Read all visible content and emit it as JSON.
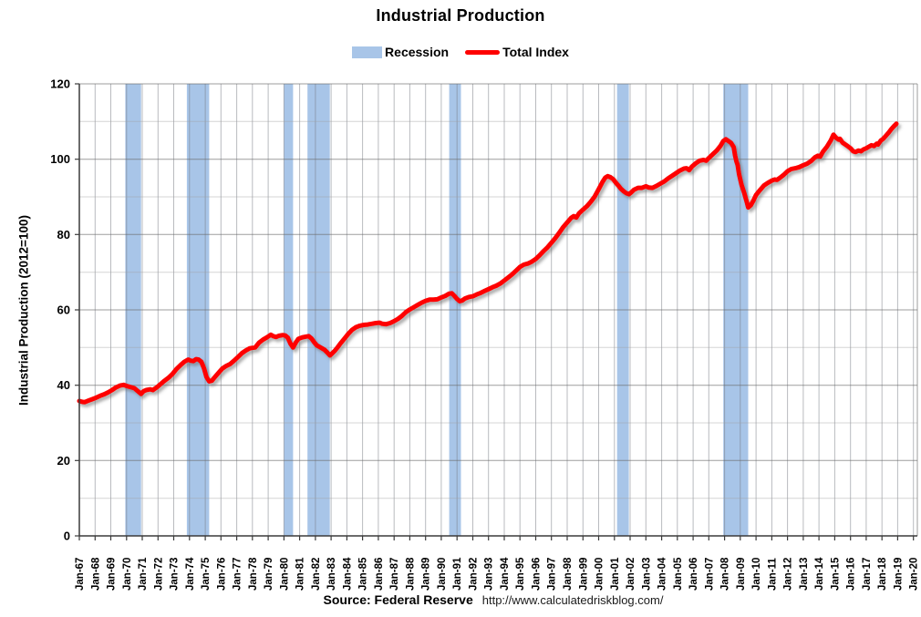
{
  "title": "Industrial Production",
  "legend": {
    "recession_label": "Recession",
    "total_index_label": "Total Index"
  },
  "y_axis": {
    "title": "Industrial Production (2012=100)",
    "ticks": [
      0,
      20,
      40,
      60,
      80,
      100,
      120
    ]
  },
  "x_axis": {
    "tick_labels": [
      "Jan-67",
      "Jan-68",
      "Jan-69",
      "Jan-70",
      "Jan-71",
      "Jan-72",
      "Jan-73",
      "Jan-74",
      "Jan-75",
      "Jan-76",
      "Jan-77",
      "Jan-78",
      "Jan-79",
      "Jan-80",
      "Jan-81",
      "Jan-82",
      "Jan-83",
      "Jan-84",
      "Jan-85",
      "Jan-86",
      "Jan-87",
      "Jan-88",
      "Jan-89",
      "Jan-90",
      "Jan-91",
      "Jan-92",
      "Jan-93",
      "Jan-94",
      "Jan-95",
      "Jan-96",
      "Jan-97",
      "Jan-98",
      "Jan-99",
      "Jan-00",
      "Jan-01",
      "Jan-02",
      "Jan-03",
      "Jan-04",
      "Jan-05",
      "Jan-06",
      "Jan-07",
      "Jan-08",
      "Jan-09",
      "Jan-10",
      "Jan-11",
      "Jan-12",
      "Jan-13",
      "Jan-14",
      "Jan-15",
      "Jan-16",
      "Jan-17",
      "Jan-18",
      "Jan-19",
      "Jan-20"
    ]
  },
  "source": {
    "label": "Source: Federal Reserve",
    "url": "http://www.calculatedriskblog.com/"
  },
  "colors": {
    "line": "#fe0000",
    "line_shadow": "#6a6a6a",
    "recession_band": "#a8c5e8",
    "grid_vertical": "rgba(115,120,128,0.50)",
    "grid_minor": "rgba(160,160,160,0.45)",
    "grid_major": "rgba(105,105,105,0.65)",
    "axis": "#3a3a3a",
    "text": "#000000"
  },
  "chart_data": {
    "type": "line",
    "title": "Industrial Production",
    "xlabel": "",
    "ylabel": "Industrial Production (2012=100)",
    "ylim": [
      0,
      120
    ],
    "xlim_years": [
      1967.0,
      2020.25
    ],
    "grid": "on",
    "legend_position": "top-center",
    "legend": [
      "Recession",
      "Total Index"
    ],
    "recessions": [
      [
        1969.92,
        1970.92
      ],
      [
        1973.83,
        1975.25
      ],
      [
        1980.0,
        1980.58
      ],
      [
        1981.5,
        1982.92
      ],
      [
        1990.5,
        1991.25
      ],
      [
        2001.17,
        2001.92
      ],
      [
        2007.92,
        2009.5
      ]
    ],
    "series": [
      {
        "name": "Total Index",
        "color": "#fe0000",
        "points": [
          [
            1967.0,
            35.8
          ],
          [
            1967.17,
            35.6
          ],
          [
            1967.33,
            35.5
          ],
          [
            1967.58,
            35.9
          ],
          [
            1967.83,
            36.3
          ],
          [
            1968.08,
            36.7
          ],
          [
            1968.33,
            37.2
          ],
          [
            1968.58,
            37.6
          ],
          [
            1968.83,
            38.1
          ],
          [
            1969.08,
            38.7
          ],
          [
            1969.33,
            39.4
          ],
          [
            1969.58,
            39.9
          ],
          [
            1969.83,
            40.1
          ],
          [
            1970.0,
            39.8
          ],
          [
            1970.17,
            39.6
          ],
          [
            1970.33,
            39.4
          ],
          [
            1970.5,
            39.2
          ],
          [
            1970.67,
            38.6
          ],
          [
            1970.92,
            37.7
          ],
          [
            1971.08,
            38.4
          ],
          [
            1971.25,
            38.7
          ],
          [
            1971.5,
            38.9
          ],
          [
            1971.67,
            38.7
          ],
          [
            1971.92,
            39.4
          ],
          [
            1972.17,
            40.3
          ],
          [
            1972.42,
            41.2
          ],
          [
            1972.67,
            42.0
          ],
          [
            1972.92,
            43.0
          ],
          [
            1973.17,
            44.3
          ],
          [
            1973.42,
            45.3
          ],
          [
            1973.67,
            46.2
          ],
          [
            1973.92,
            46.8
          ],
          [
            1974.08,
            46.5
          ],
          [
            1974.25,
            46.4
          ],
          [
            1974.42,
            46.9
          ],
          [
            1974.58,
            46.8
          ],
          [
            1974.75,
            46.2
          ],
          [
            1974.92,
            44.5
          ],
          [
            1975.08,
            42.2
          ],
          [
            1975.25,
            41.0
          ],
          [
            1975.42,
            41.2
          ],
          [
            1975.58,
            42.0
          ],
          [
            1975.83,
            43.2
          ],
          [
            1976.08,
            44.4
          ],
          [
            1976.33,
            45.1
          ],
          [
            1976.58,
            45.6
          ],
          [
            1976.83,
            46.5
          ],
          [
            1977.08,
            47.5
          ],
          [
            1977.33,
            48.5
          ],
          [
            1977.58,
            49.2
          ],
          [
            1977.83,
            49.8
          ],
          [
            1978.0,
            49.9
          ],
          [
            1978.17,
            50.0
          ],
          [
            1978.42,
            51.3
          ],
          [
            1978.67,
            52.1
          ],
          [
            1978.92,
            52.7
          ],
          [
            1979.17,
            53.4
          ],
          [
            1979.33,
            53.0
          ],
          [
            1979.5,
            52.8
          ],
          [
            1979.67,
            53.1
          ],
          [
            1979.92,
            53.3
          ],
          [
            1980.08,
            53.2
          ],
          [
            1980.25,
            52.6
          ],
          [
            1980.42,
            51.0
          ],
          [
            1980.58,
            50.0
          ],
          [
            1980.75,
            51.3
          ],
          [
            1980.92,
            52.3
          ],
          [
            1981.17,
            52.7
          ],
          [
            1981.42,
            52.9
          ],
          [
            1981.58,
            53.0
          ],
          [
            1981.75,
            52.4
          ],
          [
            1981.92,
            51.4
          ],
          [
            1982.08,
            50.6
          ],
          [
            1982.25,
            50.2
          ],
          [
            1982.42,
            49.8
          ],
          [
            1982.58,
            49.4
          ],
          [
            1982.75,
            48.7
          ],
          [
            1982.92,
            47.9
          ],
          [
            1983.08,
            48.5
          ],
          [
            1983.25,
            49.2
          ],
          [
            1983.42,
            50.1
          ],
          [
            1983.58,
            51.0
          ],
          [
            1983.83,
            52.3
          ],
          [
            1984.08,
            53.6
          ],
          [
            1984.33,
            54.7
          ],
          [
            1984.58,
            55.4
          ],
          [
            1984.83,
            55.8
          ],
          [
            1985.08,
            56.0
          ],
          [
            1985.33,
            56.1
          ],
          [
            1985.58,
            56.3
          ],
          [
            1985.83,
            56.5
          ],
          [
            1986.08,
            56.6
          ],
          [
            1986.25,
            56.3
          ],
          [
            1986.5,
            56.2
          ],
          [
            1986.75,
            56.5
          ],
          [
            1987.0,
            57.0
          ],
          [
            1987.25,
            57.6
          ],
          [
            1987.5,
            58.4
          ],
          [
            1987.75,
            59.4
          ],
          [
            1988.0,
            60.1
          ],
          [
            1988.25,
            60.7
          ],
          [
            1988.5,
            61.3
          ],
          [
            1988.75,
            61.9
          ],
          [
            1989.0,
            62.4
          ],
          [
            1989.25,
            62.7
          ],
          [
            1989.5,
            62.7
          ],
          [
            1989.75,
            62.8
          ],
          [
            1990.0,
            63.3
          ],
          [
            1990.25,
            63.7
          ],
          [
            1990.5,
            64.3
          ],
          [
            1990.67,
            64.4
          ],
          [
            1990.83,
            63.7
          ],
          [
            1991.0,
            62.9
          ],
          [
            1991.17,
            62.3
          ],
          [
            1991.33,
            62.5
          ],
          [
            1991.5,
            63.0
          ],
          [
            1991.75,
            63.4
          ],
          [
            1992.0,
            63.6
          ],
          [
            1992.25,
            64.1
          ],
          [
            1992.5,
            64.5
          ],
          [
            1992.75,
            65.0
          ],
          [
            1993.0,
            65.5
          ],
          [
            1993.25,
            66.0
          ],
          [
            1993.5,
            66.4
          ],
          [
            1993.75,
            67.0
          ],
          [
            1994.0,
            67.8
          ],
          [
            1994.25,
            68.6
          ],
          [
            1994.5,
            69.4
          ],
          [
            1994.75,
            70.4
          ],
          [
            1995.0,
            71.4
          ],
          [
            1995.25,
            72.0
          ],
          [
            1995.5,
            72.3
          ],
          [
            1995.75,
            72.8
          ],
          [
            1996.0,
            73.5
          ],
          [
            1996.25,
            74.5
          ],
          [
            1996.5,
            75.6
          ],
          [
            1996.75,
            76.6
          ],
          [
            1997.0,
            77.8
          ],
          [
            1997.25,
            79.1
          ],
          [
            1997.5,
            80.5
          ],
          [
            1997.75,
            82.0
          ],
          [
            1998.0,
            83.2
          ],
          [
            1998.25,
            84.4
          ],
          [
            1998.42,
            84.9
          ],
          [
            1998.58,
            84.5
          ],
          [
            1998.75,
            85.6
          ],
          [
            1999.0,
            86.6
          ],
          [
            1999.25,
            87.5
          ],
          [
            1999.5,
            88.7
          ],
          [
            1999.75,
            90.1
          ],
          [
            2000.0,
            92.0
          ],
          [
            2000.25,
            94.0
          ],
          [
            2000.42,
            95.1
          ],
          [
            2000.58,
            95.5
          ],
          [
            2000.75,
            95.2
          ],
          [
            2000.92,
            94.7
          ],
          [
            2001.08,
            93.8
          ],
          [
            2001.25,
            93.0
          ],
          [
            2001.42,
            92.1
          ],
          [
            2001.58,
            91.5
          ],
          [
            2001.75,
            91.0
          ],
          [
            2001.92,
            90.7
          ],
          [
            2002.08,
            91.2
          ],
          [
            2002.25,
            91.9
          ],
          [
            2002.5,
            92.4
          ],
          [
            2002.75,
            92.4
          ],
          [
            2003.0,
            92.8
          ],
          [
            2003.17,
            92.5
          ],
          [
            2003.42,
            92.4
          ],
          [
            2003.67,
            92.9
          ],
          [
            2003.92,
            93.5
          ],
          [
            2004.17,
            94.1
          ],
          [
            2004.42,
            94.9
          ],
          [
            2004.67,
            95.6
          ],
          [
            2004.92,
            96.3
          ],
          [
            2005.17,
            97.0
          ],
          [
            2005.42,
            97.5
          ],
          [
            2005.58,
            97.6
          ],
          [
            2005.75,
            97.1
          ],
          [
            2005.92,
            98.0
          ],
          [
            2006.17,
            98.9
          ],
          [
            2006.42,
            99.6
          ],
          [
            2006.67,
            99.8
          ],
          [
            2006.83,
            99.6
          ],
          [
            2007.0,
            100.3
          ],
          [
            2007.25,
            101.3
          ],
          [
            2007.5,
            102.3
          ],
          [
            2007.75,
            103.6
          ],
          [
            2007.92,
            104.8
          ],
          [
            2008.08,
            105.3
          ],
          [
            2008.25,
            104.8
          ],
          [
            2008.42,
            104.3
          ],
          [
            2008.58,
            103.2
          ],
          [
            2008.67,
            101.0
          ],
          [
            2008.75,
            99.5
          ],
          [
            2008.83,
            98.5
          ],
          [
            2008.92,
            96.0
          ],
          [
            2009.08,
            93.2
          ],
          [
            2009.25,
            91.0
          ],
          [
            2009.42,
            88.5
          ],
          [
            2009.5,
            87.2
          ],
          [
            2009.67,
            87.8
          ],
          [
            2009.83,
            89.0
          ],
          [
            2010.0,
            90.5
          ],
          [
            2010.25,
            91.8
          ],
          [
            2010.5,
            93.0
          ],
          [
            2010.75,
            93.7
          ],
          [
            2011.0,
            94.3
          ],
          [
            2011.17,
            94.6
          ],
          [
            2011.33,
            94.5
          ],
          [
            2011.5,
            95.0
          ],
          [
            2011.75,
            95.8
          ],
          [
            2012.0,
            96.8
          ],
          [
            2012.25,
            97.4
          ],
          [
            2012.5,
            97.6
          ],
          [
            2012.75,
            97.9
          ],
          [
            2013.0,
            98.4
          ],
          [
            2013.25,
            98.8
          ],
          [
            2013.5,
            99.5
          ],
          [
            2013.75,
            100.5
          ],
          [
            2013.92,
            100.9
          ],
          [
            2014.08,
            100.7
          ],
          [
            2014.25,
            102.0
          ],
          [
            2014.5,
            103.3
          ],
          [
            2014.75,
            105.0
          ],
          [
            2014.92,
            106.5
          ],
          [
            2015.08,
            105.7
          ],
          [
            2015.25,
            105.2
          ],
          [
            2015.33,
            105.4
          ],
          [
            2015.5,
            104.4
          ],
          [
            2015.75,
            103.7
          ],
          [
            2016.0,
            102.9
          ],
          [
            2016.17,
            102.1
          ],
          [
            2016.33,
            101.9
          ],
          [
            2016.5,
            102.3
          ],
          [
            2016.67,
            102.1
          ],
          [
            2016.83,
            102.6
          ],
          [
            2017.0,
            102.9
          ],
          [
            2017.17,
            103.3
          ],
          [
            2017.33,
            103.7
          ],
          [
            2017.5,
            103.5
          ],
          [
            2017.67,
            104.1
          ],
          [
            2017.75,
            103.9
          ],
          [
            2017.92,
            104.9
          ],
          [
            2018.08,
            105.4
          ],
          [
            2018.25,
            106.2
          ],
          [
            2018.42,
            107.0
          ],
          [
            2018.58,
            107.9
          ],
          [
            2018.75,
            108.7
          ],
          [
            2018.92,
            109.4
          ]
        ]
      }
    ]
  }
}
